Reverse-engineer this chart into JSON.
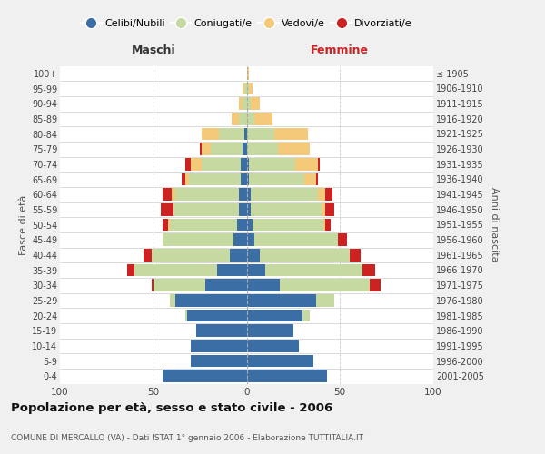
{
  "age_groups": [
    "0-4",
    "5-9",
    "10-14",
    "15-19",
    "20-24",
    "25-29",
    "30-34",
    "35-39",
    "40-44",
    "45-49",
    "50-54",
    "55-59",
    "60-64",
    "65-69",
    "70-74",
    "75-79",
    "80-84",
    "85-89",
    "90-94",
    "95-99",
    "100+"
  ],
  "birth_years": [
    "2001-2005",
    "1996-2000",
    "1991-1995",
    "1986-1990",
    "1981-1985",
    "1976-1980",
    "1971-1975",
    "1966-1970",
    "1961-1965",
    "1956-1960",
    "1951-1955",
    "1946-1950",
    "1941-1945",
    "1936-1940",
    "1931-1935",
    "1926-1930",
    "1921-1925",
    "1916-1920",
    "1911-1915",
    "1906-1910",
    "≤ 1905"
  ],
  "colors": {
    "celibi": "#3a6ea5",
    "coniugati": "#c5d9a0",
    "vedovi": "#f5c97a",
    "divorziati": "#cc2222"
  },
  "maschi": {
    "celibi": [
      45,
      30,
      30,
      27,
      32,
      38,
      22,
      16,
      9,
      7,
      5,
      4,
      4,
      3,
      3,
      2,
      1,
      0,
      0,
      0,
      0
    ],
    "coniugati": [
      0,
      0,
      0,
      0,
      1,
      3,
      28,
      44,
      42,
      38,
      36,
      35,
      34,
      28,
      21,
      17,
      14,
      4,
      2,
      1,
      0
    ],
    "vedovi": [
      0,
      0,
      0,
      0,
      0,
      0,
      0,
      0,
      0,
      0,
      1,
      0,
      2,
      2,
      6,
      5,
      9,
      4,
      2,
      1,
      0
    ],
    "divorziati": [
      0,
      0,
      0,
      0,
      0,
      0,
      1,
      4,
      4,
      0,
      3,
      7,
      5,
      2,
      3,
      1,
      0,
      0,
      0,
      0,
      0
    ]
  },
  "femmine": {
    "celibi": [
      43,
      36,
      28,
      25,
      30,
      37,
      18,
      10,
      7,
      4,
      3,
      2,
      2,
      1,
      1,
      0,
      0,
      0,
      0,
      0,
      0
    ],
    "coniugati": [
      0,
      0,
      0,
      0,
      4,
      10,
      48,
      52,
      48,
      45,
      38,
      38,
      36,
      30,
      25,
      17,
      15,
      4,
      2,
      1,
      0
    ],
    "vedovi": [
      0,
      0,
      0,
      0,
      0,
      0,
      0,
      0,
      0,
      0,
      1,
      2,
      4,
      6,
      12,
      17,
      18,
      10,
      5,
      2,
      1
    ],
    "divorziati": [
      0,
      0,
      0,
      0,
      0,
      0,
      6,
      7,
      6,
      5,
      3,
      5,
      4,
      1,
      1,
      0,
      0,
      0,
      0,
      0,
      0
    ]
  },
  "xlim": [
    -100,
    100
  ],
  "xticks": [
    -100,
    -50,
    0,
    50,
    100
  ],
  "xticklabels": [
    "100",
    "50",
    "0",
    "50",
    "100"
  ],
  "title": "Popolazione per età, sesso e stato civile - 2006",
  "subtitle": "COMUNE DI MERCALLO (VA) - Dati ISTAT 1° gennaio 2006 - Elaborazione TUTTITALIA.IT",
  "ylabel_left": "Fasce di età",
  "ylabel_right": "Anni di nascita",
  "label_maschi": "Maschi",
  "label_femmine": "Femmine",
  "legend_labels": [
    "Celibi/Nubili",
    "Coniugati/e",
    "Vedovi/e",
    "Divorziati/e"
  ],
  "bg_color": "#f0f0f0",
  "plot_bg": "#ffffff"
}
